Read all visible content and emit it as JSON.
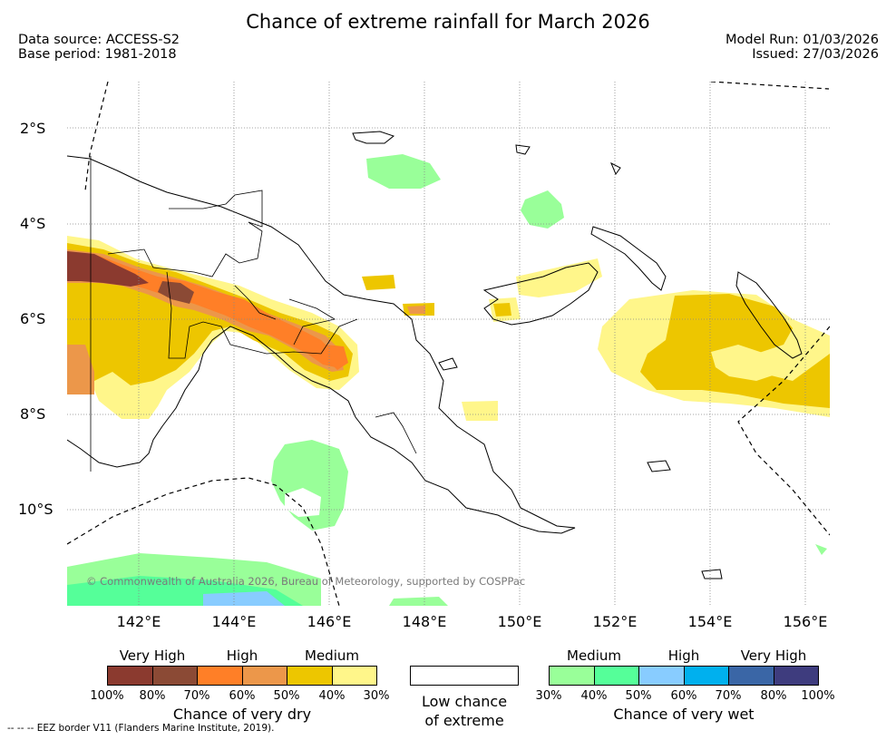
{
  "header": {
    "title": "Chance of extreme rainfall for March 2026",
    "data_source": "Data source: ACCESS-S2",
    "base_period": "Base period: 1981-2018",
    "model_run": "Model Run: 01/03/2026",
    "issued": "Issued: 27/03/2026"
  },
  "map": {
    "lat_labels": [
      "2°S",
      "4°S",
      "6°S",
      "8°S",
      "10°S"
    ],
    "lon_labels": [
      "142°E",
      "144°E",
      "146°E",
      "148°E",
      "150°E",
      "152°E",
      "154°E",
      "156°E"
    ],
    "copyright": "© Commonwealth of Australia 2026, Bureau of Meteorology, supported by COSPPac"
  },
  "legend": {
    "dry": {
      "categories": [
        "Very High",
        "High",
        "Medium"
      ],
      "ticks": [
        "100%",
        "80%",
        "70%",
        "60%",
        "50%",
        "40%",
        "30%"
      ],
      "colors": [
        "#8b3a2f",
        "#8b4a35",
        "#ff7f27",
        "#ec974a",
        "#edc600",
        "#fff68a"
      ],
      "label": "Chance of very dry"
    },
    "low": {
      "label_line1": "Low chance",
      "label_line2": "of extreme"
    },
    "wet": {
      "categories": [
        "Medium",
        "High",
        "Very High"
      ],
      "ticks": [
        "30%",
        "40%",
        "50%",
        "60%",
        "70%",
        "80%",
        "100%"
      ],
      "colors": [
        "#99ff99",
        "#55ff99",
        "#88ccff",
        "#00b0ee",
        "#3a66a6",
        "#3e3c7e"
      ],
      "label": "Chance of very wet"
    }
  },
  "footnote": "--  --  -- EEZ border V11 (Flanders Marine Institute, 2019)."
}
